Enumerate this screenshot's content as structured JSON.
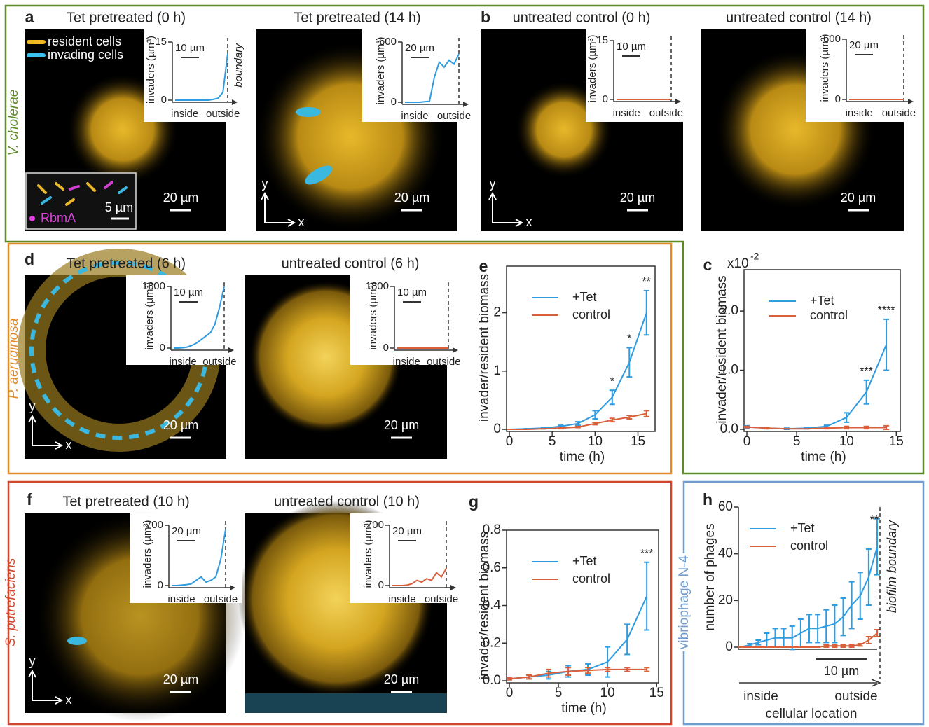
{
  "letters": [
    "a",
    "b",
    "c",
    "d",
    "e",
    "f",
    "g",
    "h"
  ],
  "species": [
    "V. cholerae",
    "P. aeruginosa",
    "S. putrefaciens",
    "vibriophage N-4"
  ],
  "images": [
    {
      "title": "Tet pretreated (0 h)",
      "scale": "20 µm"
    },
    {
      "title": "Tet pretreated (14 h)",
      "scale": "20 µm"
    },
    {
      "title": "untreated control (0 h)",
      "scale": "20 µm"
    },
    {
      "title": "untreated control (14 h)",
      "scale": "20 µm"
    },
    {
      "title": "Tet pretreated (6 h)",
      "scale": "20 µm"
    },
    {
      "title": "untreated control (6 h)",
      "scale": "20 µm"
    },
    {
      "title": "Tet pretreated (10 h)",
      "scale": "20 µm"
    },
    {
      "title": "untreated control (10 h)",
      "scale": "20 µm"
    }
  ],
  "legend": {
    "resident": "resident cells",
    "invading": "invading cells"
  },
  "zoom": {
    "label": "RbmA",
    "scale": "5 µm"
  },
  "axes_glyph": {
    "x": "x",
    "y": "y"
  },
  "chart_data": [
    {
      "type": "line",
      "xlabel": "time (h)",
      "ylabel": "invader/resident biomass",
      "x": [
        0,
        2,
        4,
        6,
        8,
        10,
        12,
        14,
        16
      ],
      "xlim": [
        0,
        17
      ],
      "ylim": [
        0,
        2.8
      ],
      "xticks": [
        0,
        5,
        10,
        15
      ],
      "yticks": [
        0,
        1,
        2
      ],
      "series": [
        {
          "name": "+Tet",
          "color": "#2f9be0",
          "values": [
            0,
            0.01,
            0.02,
            0.05,
            0.1,
            0.25,
            0.55,
            1.15,
            2.0
          ],
          "errors": [
            0,
            0,
            0.01,
            0.02,
            0.03,
            0.07,
            0.12,
            0.25,
            0.38
          ]
        },
        {
          "name": "control",
          "color": "#d9603b",
          "values": [
            0,
            0,
            0.01,
            0.02,
            0.04,
            0.1,
            0.16,
            0.21,
            0.27
          ],
          "errors": [
            0,
            0,
            0,
            0.01,
            0.01,
            0.02,
            0.03,
            0.03,
            0.05
          ]
        }
      ],
      "stars": [
        {
          "x": 12,
          "label": "*"
        },
        {
          "x": 14,
          "label": "*"
        },
        {
          "x": 16,
          "label": "**"
        }
      ]
    },
    {
      "type": "line",
      "xlabel": "time (h)",
      "ylabel": "invader/resident biomass",
      "y_multiplier": {
        "base": "x10",
        "exponent": "-2"
      },
      "x": [
        0,
        2,
        4,
        6,
        8,
        10,
        12,
        14
      ],
      "xlim": [
        0,
        15.4
      ],
      "ylim": [
        0,
        2.7
      ],
      "xticks": [
        0,
        5,
        10,
        15
      ],
      "yticks": [
        {
          "value": 0,
          "label": "0.0"
        },
        {
          "value": 1,
          "label": "1.0"
        },
        {
          "value": 2,
          "label": "2.0"
        }
      ],
      "series": [
        {
          "name": "+Tet",
          "color": "#2f9be0",
          "values": [
            0.04,
            0.02,
            0.01,
            0.02,
            0.05,
            0.2,
            0.63,
            1.43
          ],
          "errors": [
            0.02,
            0.01,
            0.01,
            0.01,
            0.02,
            0.08,
            0.2,
            0.43
          ]
        },
        {
          "name": "control",
          "color": "#d9603b",
          "values": [
            0.04,
            0.02,
            0.01,
            0.01,
            0.02,
            0.03,
            0.03,
            0.03
          ],
          "errors": [
            0.01,
            0.01,
            0,
            0,
            0.01,
            0.02,
            0.02,
            0.03
          ]
        }
      ],
      "stars": [
        {
          "x": 12,
          "label": "***"
        },
        {
          "x": 14,
          "label": "****"
        }
      ]
    },
    {
      "type": "line",
      "xlabel": "time (h)",
      "ylabel": "invader/resident biomass",
      "x": [
        0,
        2,
        4,
        6,
        8,
        10,
        12,
        14
      ],
      "xlim": [
        0,
        15.2
      ],
      "ylim": [
        0,
        0.8
      ],
      "xticks": [
        0,
        5,
        10,
        15
      ],
      "yticks": [
        {
          "value": 0,
          "label": "0.0"
        },
        {
          "value": 0.2,
          "label": "0.2"
        },
        {
          "value": 0.4,
          "label": "0.4"
        },
        {
          "value": 0.6,
          "label": "0.6"
        },
        {
          "value": 0.8,
          "label": "0.8"
        }
      ],
      "series": [
        {
          "name": "+Tet",
          "color": "#2f9be0",
          "values": [
            0.01,
            0.02,
            0.03,
            0.05,
            0.06,
            0.1,
            0.22,
            0.45
          ],
          "errors": [
            0.005,
            0.01,
            0.02,
            0.03,
            0.03,
            0.08,
            0.08,
            0.18
          ]
        },
        {
          "name": "control",
          "color": "#d9603b",
          "values": [
            0.01,
            0.02,
            0.04,
            0.05,
            0.055,
            0.06,
            0.06,
            0.06
          ],
          "errors": [
            0.005,
            0.01,
            0.02,
            0.02,
            0.015,
            0.01,
            0.01,
            0.01
          ]
        }
      ],
      "stars": [
        {
          "x": 14,
          "label": "***"
        }
      ]
    },
    {
      "type": "line",
      "ylabel": "number of phages",
      "xlabel": "cellular location",
      "x_start": "inside",
      "x_end": "outside",
      "scale_bar": "10 µm",
      "boundary_label": "biofilm boundary",
      "annotation": "**",
      "ylim": [
        0,
        60
      ],
      "yticks": [
        0,
        20,
        40,
        60
      ],
      "series": [
        {
          "name": "+Tet",
          "color": "#2f9be0",
          "values": [
            0,
            1,
            2,
            3,
            4,
            4,
            4,
            6,
            8,
            8,
            9,
            10,
            13,
            18,
            22,
            30,
            43
          ],
          "errors": [
            0,
            0.5,
            1,
            3,
            4,
            4,
            5,
            6,
            6,
            6,
            7,
            8,
            8,
            10,
            10,
            12,
            12
          ]
        },
        {
          "name": "control",
          "color": "#d9603b",
          "values": [
            0,
            0,
            0,
            0,
            0,
            0,
            0,
            0,
            0,
            0,
            0.5,
            0.5,
            0.5,
            0.5,
            1,
            3,
            6
          ],
          "errors": [
            0,
            0,
            0,
            0,
            0,
            0,
            0,
            0,
            0,
            0,
            0.5,
            0.5,
            0.5,
            0.5,
            0.5,
            1.5,
            1.5
          ]
        }
      ]
    },
    {
      "type": "inset",
      "ylabel": "invaders (µm³)",
      "scale_bar": "10 µm",
      "boundary_label": "boundary",
      "categories": [
        null,
        null,
        "inside",
        null,
        null,
        null,
        null,
        null,
        null,
        null,
        "outside",
        null
      ],
      "ylim": [
        0,
        15
      ],
      "yticks": [
        0,
        15
      ],
      "series": [
        {
          "color": "#2f9be0",
          "values": [
            0,
            0,
            0,
            0,
            0,
            0,
            0,
            0,
            0.2,
            0.5,
            2,
            12
          ]
        }
      ]
    },
    {
      "type": "inset",
      "ylabel": "invaders (µm³)",
      "scale_bar": "20 µm",
      "categories": [
        null,
        null,
        "inside",
        null,
        null,
        null,
        null,
        null,
        null,
        null,
        "outside",
        null
      ],
      "ylim": [
        0,
        600
      ],
      "yticks": [
        0,
        600
      ],
      "series": [
        {
          "color": "#2f9be0",
          "values": [
            0,
            0,
            0,
            0,
            5,
            10,
            250,
            400,
            350,
            420,
            380,
            480
          ]
        }
      ]
    },
    {
      "type": "inset",
      "ylabel": "invaders (µm³)",
      "scale_bar": "10 µm",
      "categories": [
        null,
        null,
        "inside",
        null,
        null,
        null,
        null,
        null,
        null,
        null,
        "outside",
        null
      ],
      "ylim": [
        0,
        15
      ],
      "yticks": [
        0,
        15
      ],
      "series": [
        {
          "color": "#d9603b",
          "values": [
            0,
            0,
            0,
            0,
            0,
            0,
            0,
            0,
            0,
            0,
            0,
            0
          ]
        }
      ]
    },
    {
      "type": "inset",
      "ylabel": "invaders (µm³)",
      "scale_bar": "20 µm",
      "categories": [
        null,
        null,
        "inside",
        null,
        null,
        null,
        null,
        null,
        null,
        null,
        "outside",
        null
      ],
      "ylim": [
        0,
        600
      ],
      "yticks": [
        0,
        600
      ],
      "series": [
        {
          "color": "#d9603b",
          "values": [
            0,
            0,
            0,
            0,
            0,
            0,
            0,
            0,
            0,
            0,
            0,
            0
          ]
        }
      ]
    },
    {
      "type": "inset",
      "ylabel": "invaders (µm³)",
      "scale_bar": "10 µm",
      "categories": [
        null,
        null,
        "inside",
        null,
        null,
        null,
        null,
        null,
        null,
        null,
        "outside",
        null
      ],
      "ylim": [
        0,
        1800
      ],
      "yticks": [
        0,
        1800
      ],
      "series": [
        {
          "color": "#2f9be0",
          "values": [
            0,
            0,
            10,
            30,
            80,
            150,
            250,
            350,
            450,
            700,
            1200,
            1800
          ]
        }
      ]
    },
    {
      "type": "inset",
      "ylabel": "invaders (µm³)",
      "scale_bar": "10 µm",
      "categories": [
        null,
        null,
        "inside",
        null,
        null,
        null,
        null,
        null,
        null,
        null,
        "outside",
        null
      ],
      "ylim": [
        0,
        1800
      ],
      "yticks": [
        0,
        1800
      ],
      "series": [
        {
          "color": "#d9603b",
          "values": [
            0,
            0,
            0,
            0,
            0,
            0,
            0,
            0,
            0,
            0,
            0,
            0
          ]
        }
      ]
    },
    {
      "type": "inset",
      "ylabel": "invaders (µm³)",
      "scale_bar": "20 µm",
      "categories": [
        null,
        null,
        "inside",
        null,
        null,
        null,
        null,
        null,
        null,
        null,
        "outside",
        null
      ],
      "ylim": [
        0,
        700
      ],
      "yticks": [
        0,
        700
      ],
      "series": [
        {
          "color": "#2f9be0",
          "values": [
            0,
            0,
            5,
            10,
            20,
            60,
            100,
            40,
            60,
            100,
            300,
            650
          ]
        }
      ]
    },
    {
      "type": "inset",
      "ylabel": "invaders (µm³)",
      "scale_bar": "20 µm",
      "categories": [
        null,
        null,
        "inside",
        null,
        null,
        null,
        null,
        null,
        null,
        null,
        "outside",
        null
      ],
      "ylim": [
        0,
        700
      ],
      "yticks": [
        0,
        700
      ],
      "series": [
        {
          "color": "#d9603b",
          "values": [
            0,
            0,
            0,
            5,
            20,
            60,
            40,
            80,
            60,
            150,
            100,
            200
          ]
        }
      ]
    }
  ]
}
